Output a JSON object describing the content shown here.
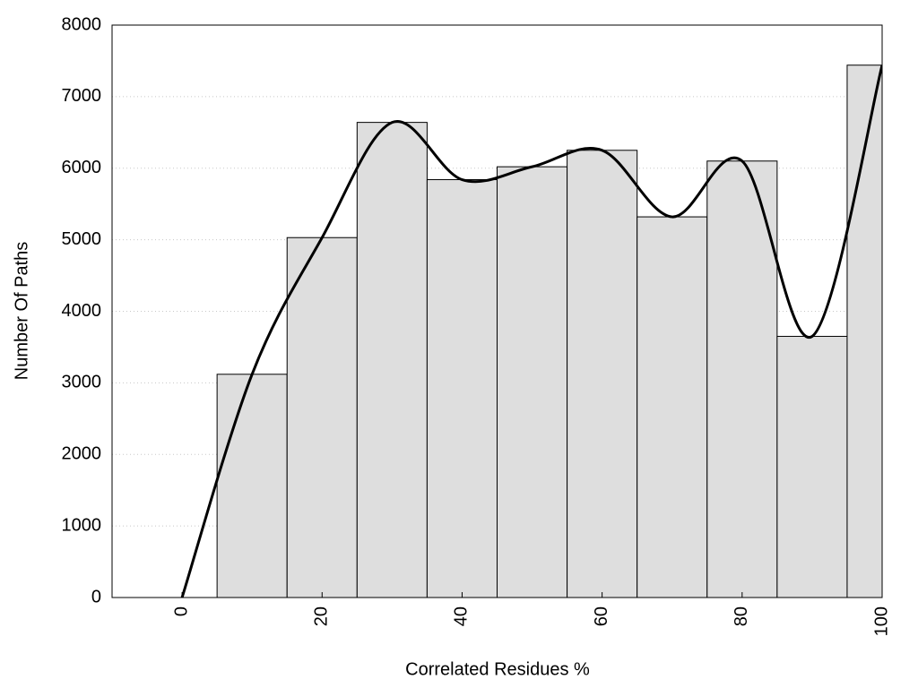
{
  "chart_data": {
    "type": "histogram",
    "xlabel": "Correlated Residues %",
    "ylabel": "Number Of Paths",
    "bins": [
      -5,
      5,
      15,
      25,
      35,
      45,
      55,
      65,
      75,
      85,
      95,
      105
    ],
    "values": [
      0,
      3120,
      5030,
      6640,
      5840,
      6020,
      6250,
      5320,
      6100,
      3650,
      7440
    ],
    "color": "#dedede",
    "line": {
      "color": "#000000",
      "x": [
        0,
        10,
        20,
        30,
        40,
        50,
        60,
        70,
        80,
        90,
        100
      ],
      "values": [
        0,
        3120,
        5030,
        6640,
        5840,
        6020,
        6250,
        5320,
        6100,
        3650,
        7440
      ]
    },
    "xlim": [
      -10,
      100
    ],
    "ylim": [
      0,
      8000
    ],
    "xticks": [
      0,
      20,
      40,
      60,
      80,
      100
    ],
    "yticks": [
      0,
      1000,
      2000,
      3000,
      4000,
      5000,
      6000,
      7000,
      8000
    ],
    "grid": true
  }
}
